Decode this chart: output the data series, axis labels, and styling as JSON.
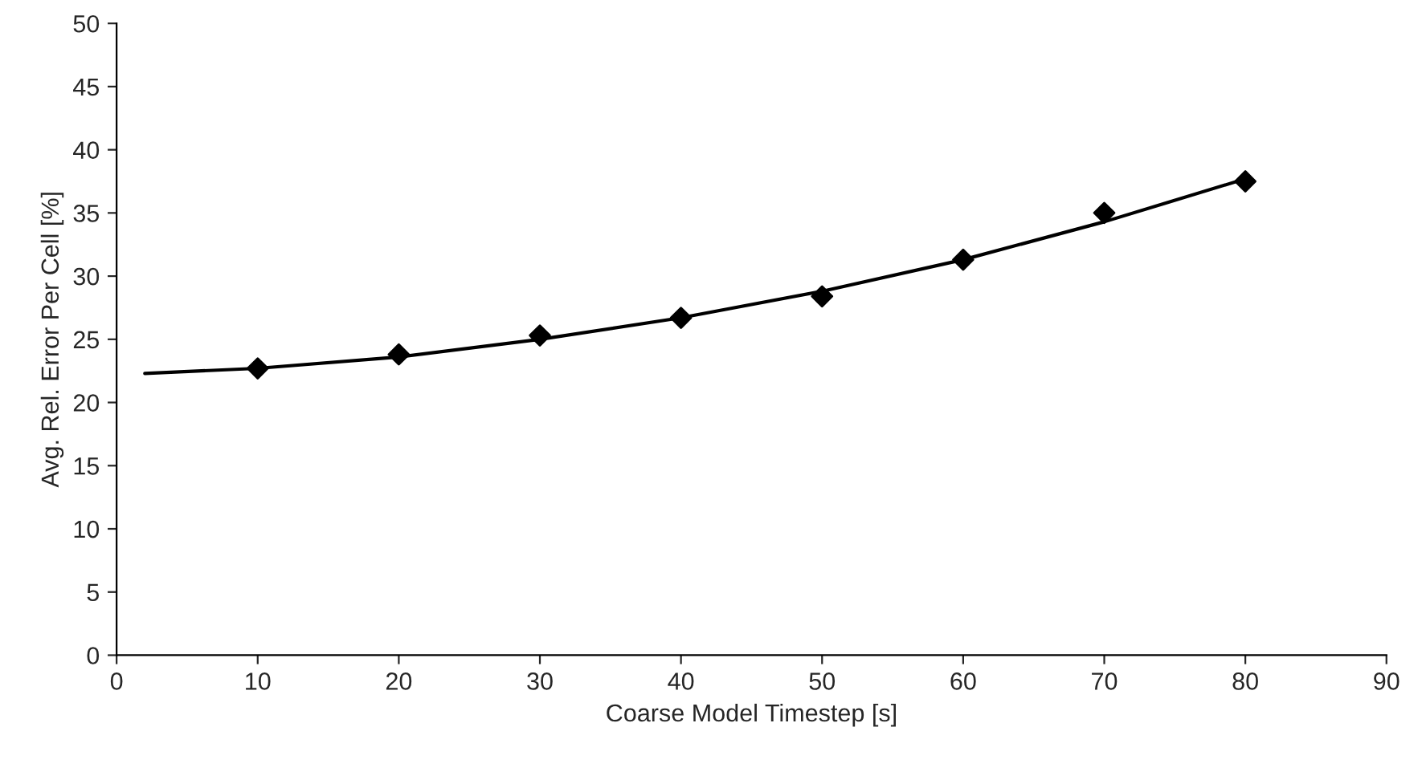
{
  "chart_data": {
    "type": "scatter",
    "xlabel": "Coarse Model Timestep [s]",
    "ylabel": "Avg. Rel. Error Per Cell [%]",
    "x": [
      10,
      20,
      30,
      40,
      50,
      60,
      70,
      80
    ],
    "series": [
      {
        "color": "#000000",
        "marker": "diamond",
        "values": [
          22.7,
          23.8,
          25.3,
          26.7,
          28.4,
          31.3,
          35.0,
          37.5
        ]
      },
      {
        "type": "line",
        "color": "#000000",
        "marker": "none",
        "line_style": "solid",
        "x": [
          2,
          10,
          20,
          30,
          40,
          50,
          60,
          70,
          80
        ],
        "values": [
          22.3,
          22.7,
          23.6,
          25.0,
          26.7,
          28.8,
          31.3,
          34.3,
          37.7
        ]
      }
    ],
    "xlim": [
      0,
      90
    ],
    "xticks": [
      0,
      10,
      20,
      30,
      40,
      50,
      60,
      70,
      80,
      90
    ],
    "ylim": [
      0,
      50
    ],
    "yticks": [
      0,
      5,
      10,
      15,
      20,
      25,
      30,
      35,
      40,
      45,
      50
    ],
    "grid": false,
    "legend": false
  }
}
